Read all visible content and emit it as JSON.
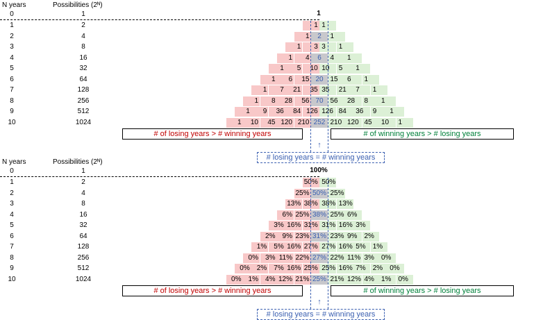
{
  "header": {
    "n_years": "N years",
    "possibilities": "Possibilities (2ᴺ)"
  },
  "rows": [
    {
      "n": "0",
      "p": "1"
    },
    {
      "n": "1",
      "p": "2"
    },
    {
      "n": "2",
      "p": "4"
    },
    {
      "n": "3",
      "p": "8"
    },
    {
      "n": "4",
      "p": "16"
    },
    {
      "n": "5",
      "p": "32"
    },
    {
      "n": "6",
      "p": "64"
    },
    {
      "n": "7",
      "p": "128"
    },
    {
      "n": "8",
      "p": "256"
    },
    {
      "n": "9",
      "p": "512"
    },
    {
      "n": "10",
      "p": "1024"
    }
  ],
  "counts": {
    "top": "1",
    "rows": [
      [
        "1",
        "1"
      ],
      [
        "1",
        "2",
        "1"
      ],
      [
        "1",
        "3",
        "3",
        "1"
      ],
      [
        "1",
        "4",
        "6",
        "4",
        "1"
      ],
      [
        "1",
        "5",
        "10",
        "10",
        "5",
        "1"
      ],
      [
        "1",
        "6",
        "15",
        "20",
        "15",
        "6",
        "1"
      ],
      [
        "1",
        "7",
        "21",
        "35",
        "35",
        "21",
        "7",
        "1"
      ],
      [
        "1",
        "8",
        "28",
        "56",
        "70",
        "56",
        "28",
        "8",
        "1"
      ],
      [
        "1",
        "9",
        "36",
        "84",
        "126",
        "126",
        "84",
        "36",
        "9",
        "1"
      ],
      [
        "1",
        "10",
        "45",
        "120",
        "210",
        "252",
        "210",
        "120",
        "45",
        "10",
        "1"
      ]
    ]
  },
  "percents": {
    "top": "100%",
    "rows": [
      [
        "50%",
        "50%"
      ],
      [
        "25%",
        "50%",
        "25%"
      ],
      [
        "13%",
        "38%",
        "38%",
        "13%"
      ],
      [
        "6%",
        "25%",
        "38%",
        "25%",
        "6%"
      ],
      [
        "3%",
        "16%",
        "31%",
        "31%",
        "16%",
        "3%"
      ],
      [
        "2%",
        "9%",
        "23%",
        "31%",
        "23%",
        "9%",
        "2%"
      ],
      [
        "1%",
        "5%",
        "16%",
        "27%",
        "27%",
        "16%",
        "5%",
        "1%"
      ],
      [
        "0%",
        "3%",
        "11%",
        "22%",
        "27%",
        "22%",
        "11%",
        "3%",
        "0%"
      ],
      [
        "0%",
        "2%",
        "7%",
        "16%",
        "25%",
        "25%",
        "16%",
        "7%",
        "2%",
        "0%"
      ],
      [
        "0%",
        "1%",
        "4%",
        "12%",
        "21%",
        "25%",
        "21%",
        "12%",
        "4%",
        "1%",
        "0%"
      ]
    ]
  },
  "labels": {
    "losing": "# of losing years > # winning years",
    "winning": "# of winning years > # losing years",
    "equal": "# losing years = # winning years",
    "arrow": "↑"
  },
  "colors": {
    "red": "#f8c8c8",
    "green": "#dcf0d6",
    "grey": "#c8c8cc",
    "blue": "#3a5fb0"
  }
}
